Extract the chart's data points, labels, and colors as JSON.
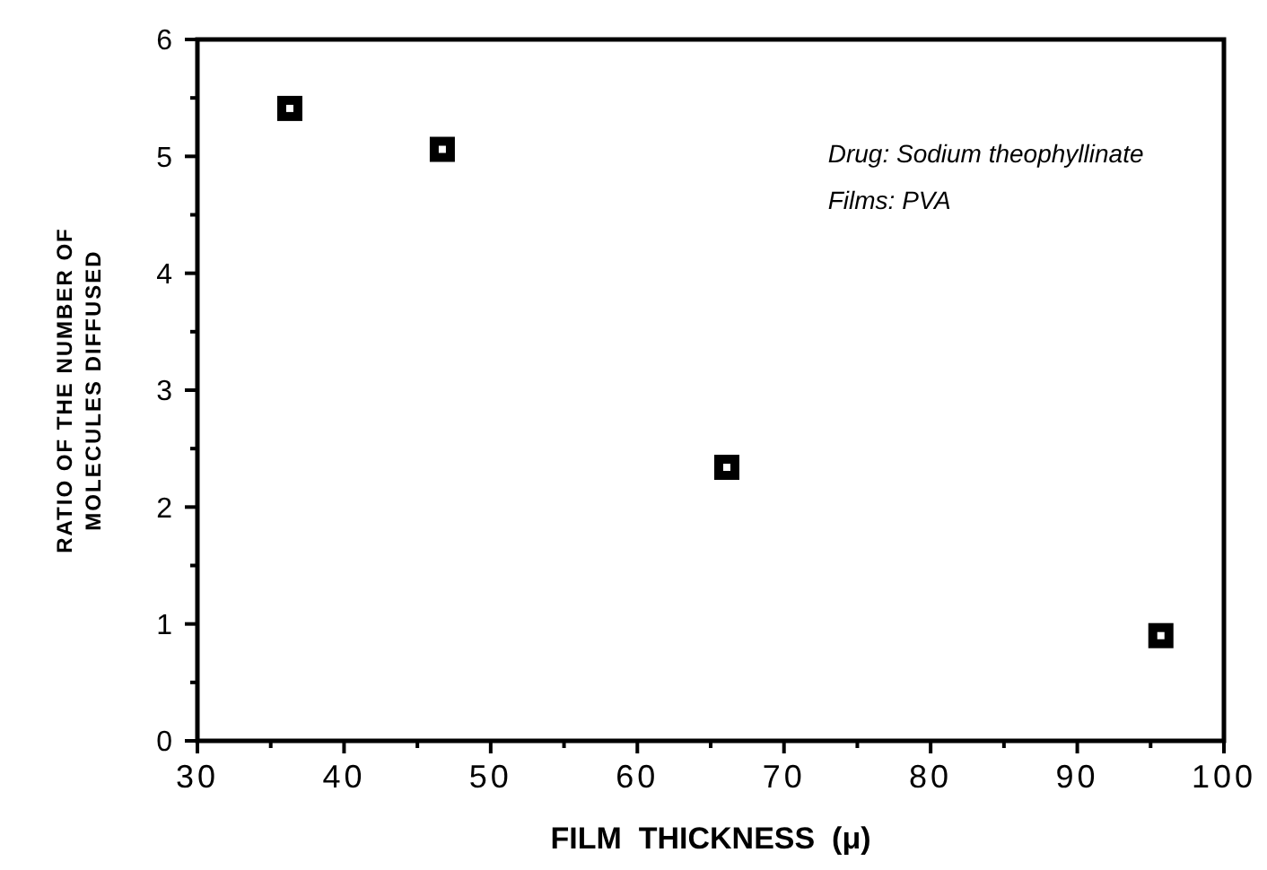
{
  "chart_data": {
    "type": "scatter",
    "xlabel": "FILM  THICKNESS  (μ)",
    "ylabel": "RATIO OF THE NUMBER OF\nMOLECULES DIFFUSED",
    "x": [
      36.3,
      46.7,
      66.1,
      95.7
    ],
    "values": [
      5.41,
      5.06,
      2.34,
      0.9
    ],
    "color": "#000000",
    "marker": "square",
    "grid": false,
    "xlim": [
      30,
      100
    ],
    "xticks": [
      30,
      {
        "value": 35,
        "label": null
      },
      40,
      {
        "value": 45,
        "label": null
      },
      50,
      {
        "value": 55,
        "label": null
      },
      60,
      {
        "value": 65,
        "label": null
      },
      70,
      {
        "value": 75,
        "label": null
      },
      80,
      {
        "value": 85,
        "label": null
      },
      90,
      {
        "value": 95,
        "label": null
      },
      100
    ],
    "ylim": [
      0,
      6
    ],
    "yticks": [
      0,
      {
        "value": 0.5,
        "label": null
      },
      1,
      {
        "value": 1.5,
        "label": null
      },
      2,
      {
        "value": 2.5,
        "label": null
      },
      3,
      {
        "value": 3.5,
        "label": null
      },
      4,
      {
        "value": 4.5,
        "label": null
      },
      5,
      {
        "value": 5.5,
        "label": null
      },
      6
    ],
    "annotations": [
      "Drug: Sodium theophyllinate\nFilms: PVA"
    ]
  }
}
